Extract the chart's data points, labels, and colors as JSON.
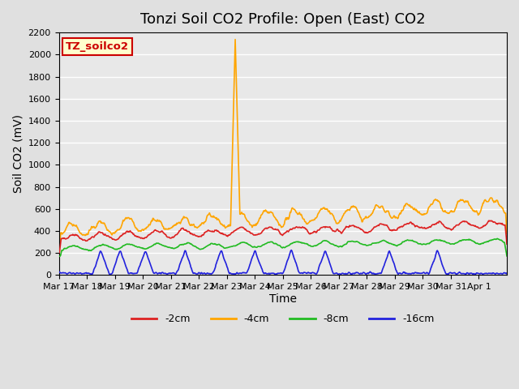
{
  "title": "Tonzi Soil CO2 Profile: Open (East) CO2",
  "ylabel": "Soil CO2 (mV)",
  "xlabel": "Time",
  "ylim": [
    0,
    2200
  ],
  "yticks": [
    0,
    200,
    400,
    600,
    800,
    1000,
    1200,
    1400,
    1600,
    1800,
    2000,
    2200
  ],
  "xtick_labels": [
    "Mar 17",
    "Mar 18",
    "Mar 19",
    "Mar 20",
    "Mar 21",
    "Mar 22",
    "Mar 23",
    "Mar 24",
    "Mar 25",
    "Mar 26",
    "Mar 27",
    "Mar 28",
    "Mar 29",
    "Mar 30",
    "Mar 31",
    "Apr 1"
  ],
  "annotation_text": "TZ_soilco2",
  "annotation_bg": "#FFFFCC",
  "annotation_border": "#CC0000",
  "line_colors": [
    "#DD2222",
    "#FFA500",
    "#22BB22",
    "#2222DD"
  ],
  "line_labels": [
    "-2cm",
    "-4cm",
    "-8cm",
    "-16cm"
  ],
  "line_width": 1.2,
  "bg_color": "#E0E0E0",
  "plot_bg": "#E8E8E8",
  "grid_color": "#FFFFFF",
  "title_fontsize": 13,
  "axis_fontsize": 10
}
